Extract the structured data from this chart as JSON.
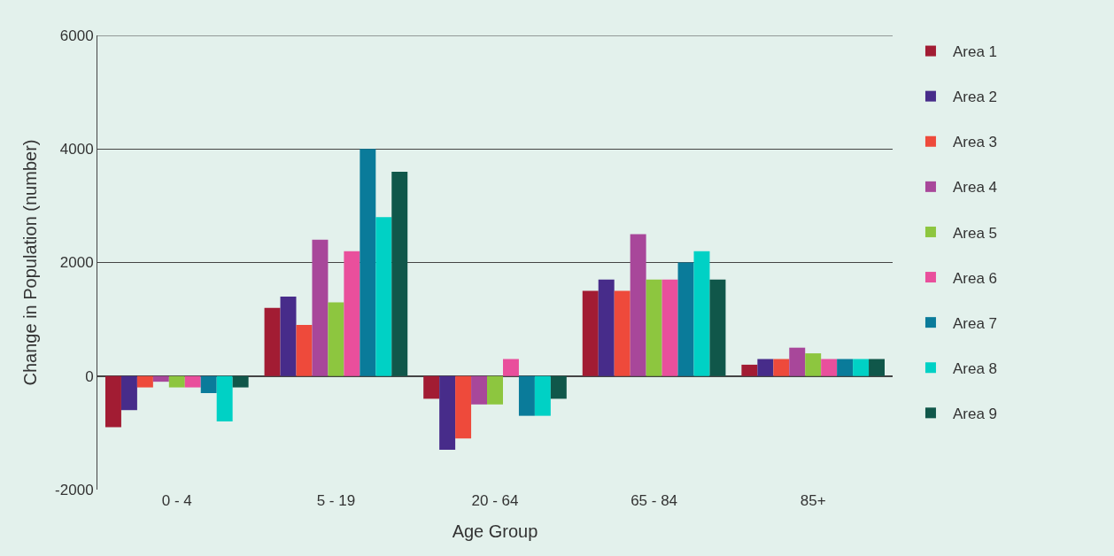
{
  "chart_data": {
    "type": "bar",
    "xlabel": "Age Group",
    "ylabel": "Change in Population (number)",
    "categories": [
      "0 - 4",
      "5 - 19",
      "20 - 64",
      "65 - 84",
      "85+"
    ],
    "series": [
      {
        "name": "Area 1",
        "color": "#a21c33",
        "values": [
          -900,
          1200,
          -400,
          1500,
          200
        ]
      },
      {
        "name": "Area 2",
        "color": "#472c8a",
        "values": [
          -600,
          1400,
          -1300,
          1700,
          300
        ]
      },
      {
        "name": "Area 3",
        "color": "#ee4a3b",
        "values": [
          -200,
          900,
          -1100,
          1500,
          300
        ]
      },
      {
        "name": "Area 4",
        "color": "#a8479a",
        "values": [
          -100,
          2400,
          -500,
          2500,
          500
        ]
      },
      {
        "name": "Area 5",
        "color": "#8dc63f",
        "values": [
          -200,
          1300,
          -500,
          1700,
          400
        ]
      },
      {
        "name": "Area 6",
        "color": "#e94f9c",
        "values": [
          -200,
          2200,
          300,
          1700,
          300
        ]
      },
      {
        "name": "Area 7",
        "color": "#0a7b9a",
        "values": [
          -300,
          4000,
          -700,
          2000,
          300
        ]
      },
      {
        "name": "Area 8",
        "color": "#00d1c5",
        "values": [
          -800,
          2800,
          -700,
          2200,
          300
        ]
      },
      {
        "name": "Area 9",
        "color": "#10574a",
        "values": [
          -200,
          3600,
          -400,
          1700,
          300
        ]
      }
    ],
    "ylim": [
      -2000,
      6000
    ],
    "yticks": [
      -2000,
      0,
      2000,
      4000,
      6000
    ],
    "grid": "y",
    "legend": "right"
  }
}
